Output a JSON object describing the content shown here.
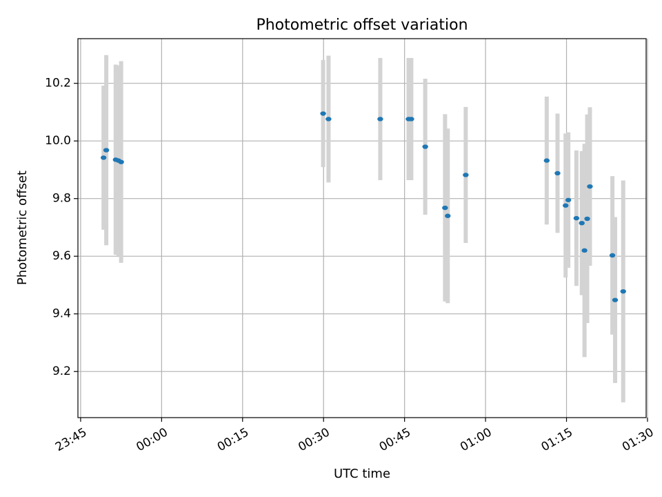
{
  "chart_data": {
    "type": "scatter",
    "title": "Photometric offset variation",
    "xlabel": "UTC time",
    "ylabel": "Photometric offset",
    "x_is_time": true,
    "xlim": [
      "23:44:30",
      "01:29:45"
    ],
    "ylim": [
      9.04,
      10.355
    ],
    "x_ticks": [
      "23:45",
      "00:00",
      "00:15",
      "00:30",
      "00:45",
      "01:00",
      "01:15",
      "01:30"
    ],
    "y_ticks": [
      9.2,
      9.4,
      9.6,
      9.8,
      10.0,
      10.2
    ],
    "y_tick_labels": [
      "9.2",
      "9.4",
      "9.6",
      "9.8",
      "10.0",
      "10.2"
    ],
    "grid": true,
    "marker_color": "#1f77b4",
    "errorbar_color": "#d3d3d3",
    "points": [
      {
        "t": "23:49:15",
        "y": 9.942,
        "err": 0.25
      },
      {
        "t": "23:49:45",
        "y": 9.968,
        "err": 0.33
      },
      {
        "t": "23:51:30",
        "y": 9.935,
        "err": 0.33
      },
      {
        "t": "23:52:00",
        "y": 9.932,
        "err": 0.33
      },
      {
        "t": "23:52:30",
        "y": 9.927,
        "err": 0.35
      },
      {
        "t": "00:29:55",
        "y": 10.095,
        "err": 0.186
      },
      {
        "t": "00:30:55",
        "y": 10.076,
        "err": 0.22
      },
      {
        "t": "00:40:30",
        "y": 10.076,
        "err": 0.212
      },
      {
        "t": "00:45:45",
        "y": 10.076,
        "err": 0.212
      },
      {
        "t": "00:46:15",
        "y": 10.076,
        "err": 0.212
      },
      {
        "t": "00:48:50",
        "y": 9.98,
        "err": 0.236
      },
      {
        "t": "00:52:30",
        "y": 9.768,
        "err": 0.325
      },
      {
        "t": "00:53:00",
        "y": 9.74,
        "err": 0.303
      },
      {
        "t": "00:56:20",
        "y": 9.882,
        "err": 0.236
      },
      {
        "t": "01:11:20",
        "y": 9.932,
        "err": 0.222
      },
      {
        "t": "01:13:20",
        "y": 9.888,
        "err": 0.207
      },
      {
        "t": "01:14:50",
        "y": 9.776,
        "err": 0.25
      },
      {
        "t": "01:15:20",
        "y": 9.795,
        "err": 0.235
      },
      {
        "t": "01:16:50",
        "y": 9.732,
        "err": 0.235
      },
      {
        "t": "01:17:50",
        "y": 9.715,
        "err": 0.25
      },
      {
        "t": "01:18:20",
        "y": 9.62,
        "err": 0.37
      },
      {
        "t": "01:18:50",
        "y": 9.73,
        "err": 0.362
      },
      {
        "t": "01:19:20",
        "y": 9.842,
        "err": 0.275
      },
      {
        "t": "01:23:30",
        "y": 9.603,
        "err": 0.275
      },
      {
        "t": "01:24:00",
        "y": 9.448,
        "err": 0.288
      },
      {
        "t": "01:25:30",
        "y": 9.478,
        "err": 0.385
      }
    ]
  }
}
